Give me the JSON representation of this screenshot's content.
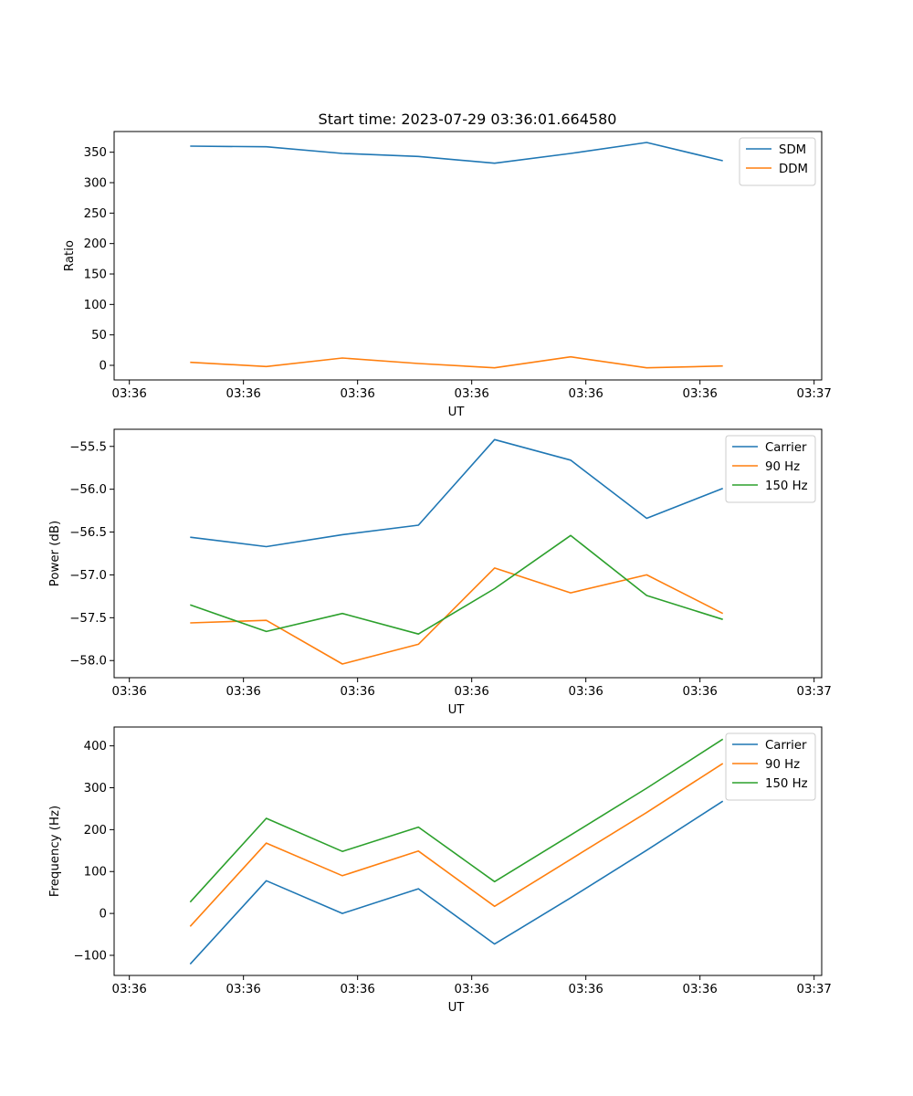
{
  "title": "Start time: 2023-07-29 03:36:01.664580",
  "colors": {
    "c0": "#1f77b4",
    "c1": "#ff7f0e",
    "c2": "#2ca02c"
  },
  "chart_data": [
    {
      "type": "line",
      "title": "Start time: 2023-07-29 03:36:01.664580",
      "xlabel": "UT",
      "ylabel": "Ratio",
      "x": [
        1,
        2,
        3,
        4,
        5,
        6,
        7,
        8
      ],
      "xlim": [
        0,
        9.3
      ],
      "x_ticks": [
        0.2,
        1.7,
        3.2,
        4.7,
        6.2,
        7.7,
        9.2
      ],
      "x_tick_labels": [
        "03:36",
        "03:36",
        "03:36",
        "03:36",
        "03:36",
        "03:36",
        "03:36"
      ],
      "x_tick_label_last": "03:37",
      "ylim": [
        -24,
        384
      ],
      "y_ticks": [
        0,
        50,
        100,
        150,
        200,
        250,
        300,
        350
      ],
      "y_tick_labels": [
        "0",
        "50",
        "100",
        "150",
        "200",
        "250",
        "300",
        "350"
      ],
      "legend_position": "top-right",
      "series": [
        {
          "name": "SDM",
          "color": "#1f77b4",
          "values": [
            360,
            359,
            348,
            343,
            332,
            348,
            366,
            336
          ]
        },
        {
          "name": "DDM",
          "color": "#ff7f0e",
          "values": [
            5,
            -2,
            12,
            3,
            -4,
            14,
            -4,
            -1
          ]
        }
      ]
    },
    {
      "type": "line",
      "title": "",
      "xlabel": "UT",
      "ylabel": "Power (dB)",
      "x": [
        1,
        2,
        3,
        4,
        5,
        6,
        7,
        8
      ],
      "xlim": [
        0,
        9.3
      ],
      "x_ticks": [
        0.2,
        1.7,
        3.2,
        4.7,
        6.2,
        7.7,
        9.2
      ],
      "x_tick_labels": [
        "03:36",
        "03:36",
        "03:36",
        "03:36",
        "03:36",
        "03:36",
        "03:36"
      ],
      "x_tick_label_last": "03:37",
      "ylim": [
        -58.2,
        -55.3
      ],
      "y_ticks": [
        -58.0,
        -57.5,
        -57.0,
        -56.5,
        -56.0,
        -55.5
      ],
      "y_tick_labels": [
        "−58.0",
        "−57.5",
        "−57.0",
        "−56.5",
        "−56.0",
        "−55.5"
      ],
      "legend_position": "top-right",
      "series": [
        {
          "name": "Carrier",
          "color": "#1f77b4",
          "values": [
            -56.56,
            -56.67,
            -56.53,
            -56.42,
            -55.42,
            -55.66,
            -56.34,
            -55.99
          ]
        },
        {
          "name": "90 Hz",
          "color": "#ff7f0e",
          "values": [
            -57.56,
            -57.53,
            -58.04,
            -57.81,
            -56.92,
            -57.21,
            -57.0,
            -57.45
          ]
        },
        {
          "name": "150 Hz",
          "color": "#2ca02c",
          "values": [
            -57.35,
            -57.66,
            -57.45,
            -57.69,
            -57.16,
            -56.54,
            -57.24,
            -57.52
          ]
        }
      ]
    },
    {
      "type": "line",
      "title": "",
      "xlabel": "UT",
      "ylabel": "Frequency (Hz)",
      "x": [
        1,
        2,
        3,
        4,
        5,
        6,
        7,
        8
      ],
      "xlim": [
        0,
        9.3
      ],
      "x_ticks": [
        0.2,
        1.7,
        3.2,
        4.7,
        6.2,
        7.7,
        9.2
      ],
      "x_tick_labels": [
        "03:36",
        "03:36",
        "03:36",
        "03:36",
        "03:36",
        "03:36",
        "03:36"
      ],
      "x_tick_label_last": "03:37",
      "ylim": [
        -148,
        445
      ],
      "y_ticks": [
        -100,
        0,
        100,
        200,
        300,
        400
      ],
      "y_tick_labels": [
        "−100",
        "0",
        "100",
        "200",
        "300",
        "400"
      ],
      "legend_position": "top-right",
      "series": [
        {
          "name": "Carrier",
          "color": "#1f77b4",
          "values": [
            -121,
            78,
            0,
            59,
            -73,
            37,
            151,
            268
          ]
        },
        {
          "name": "90 Hz",
          "color": "#ff7f0e",
          "values": [
            -31,
            168,
            90,
            149,
            17,
            129,
            241,
            358
          ]
        },
        {
          "name": "150 Hz",
          "color": "#2ca02c",
          "values": [
            27,
            227,
            148,
            206,
            76,
            187,
            299,
            416
          ]
        }
      ]
    }
  ]
}
